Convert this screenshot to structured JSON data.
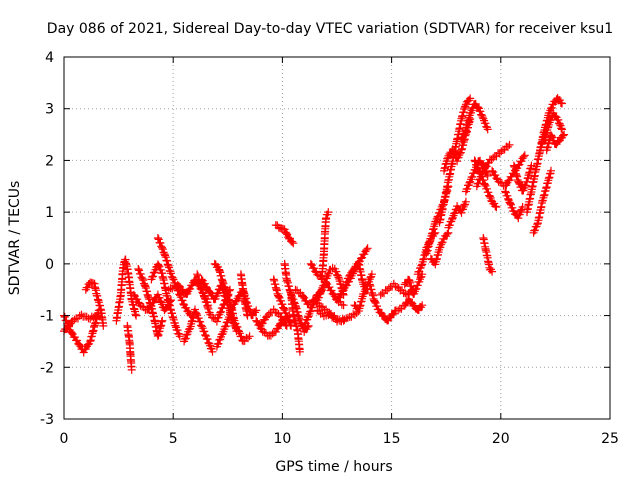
{
  "chart_data": {
    "type": "scatter",
    "title": "Day 086 of 2021, Sidereal Day-to-day VTEC variation (SDTVAR) for receiver ksu1",
    "xlabel": "GPS time / hours",
    "ylabel": "SDTVAR / TECUs",
    "xlim": [
      0,
      25
    ],
    "ylim": [
      -3,
      4
    ],
    "xticks": [
      "0",
      "5",
      "10",
      "15",
      "20",
      "25"
    ],
    "yticks": [
      "-3",
      "-2",
      "-1",
      "0",
      "1",
      "2",
      "3",
      "4"
    ],
    "grid": true,
    "marker": "+",
    "series_color": "#ff0000",
    "tracks": [
      [
        [
          0.0,
          -1.0
        ],
        [
          0.3,
          -1.3
        ],
        [
          0.6,
          -1.5
        ],
        [
          0.9,
          -1.7
        ],
        [
          1.2,
          -1.5
        ],
        [
          1.4,
          -1.2
        ],
        [
          1.6,
          -0.9
        ]
      ],
      [
        [
          0.0,
          -1.3
        ],
        [
          0.4,
          -1.1
        ],
        [
          0.8,
          -1.0
        ],
        [
          1.2,
          -1.05
        ],
        [
          1.5,
          -1.0
        ]
      ],
      [
        [
          1.0,
          -0.5
        ],
        [
          1.2,
          -0.35
        ],
        [
          1.4,
          -0.4
        ],
        [
          1.5,
          -0.6
        ],
        [
          1.7,
          -0.9
        ],
        [
          1.8,
          -1.2
        ]
      ],
      [
        [
          2.4,
          -1.1
        ],
        [
          2.6,
          -0.6
        ],
        [
          2.7,
          -0.1
        ],
        [
          2.8,
          0.1
        ],
        [
          2.95,
          -0.2
        ],
        [
          3.1,
          -0.7
        ],
        [
          3.3,
          -1.0
        ]
      ],
      [
        [
          2.9,
          -1.2
        ],
        [
          3.0,
          -1.5
        ],
        [
          3.05,
          -1.8
        ],
        [
          3.1,
          -2.05
        ]
      ],
      [
        [
          3.2,
          -0.6
        ],
        [
          3.5,
          -0.8
        ],
        [
          3.8,
          -0.9
        ],
        [
          4.0,
          -0.8
        ],
        [
          4.3,
          -0.6
        ],
        [
          4.6,
          -0.9
        ],
        [
          4.9,
          -0.7
        ]
      ],
      [
        [
          3.4,
          -0.1
        ],
        [
          3.7,
          -0.4
        ],
        [
          3.9,
          -0.7
        ],
        [
          4.1,
          -1.0
        ],
        [
          4.3,
          -1.4
        ],
        [
          4.5,
          -1.1
        ]
      ],
      [
        [
          4.0,
          -0.3
        ],
        [
          4.3,
          0.0
        ],
        [
          4.5,
          -0.2
        ],
        [
          4.7,
          -0.6
        ],
        [
          4.9,
          -0.9
        ],
        [
          5.1,
          -1.2
        ],
        [
          5.3,
          -1.4
        ]
      ],
      [
        [
          4.8,
          -0.5
        ],
        [
          5.2,
          -0.4
        ],
        [
          5.6,
          -0.6
        ],
        [
          6.0,
          -0.3
        ],
        [
          6.3,
          -0.5
        ],
        [
          6.6,
          -0.8
        ]
      ],
      [
        [
          4.3,
          0.5
        ],
        [
          4.6,
          0.2
        ],
        [
          4.9,
          -0.2
        ],
        [
          5.2,
          -0.5
        ],
        [
          5.5,
          -0.8
        ],
        [
          5.8,
          -1.0
        ]
      ],
      [
        [
          5.5,
          -1.5
        ],
        [
          5.8,
          -1.2
        ],
        [
          6.0,
          -0.9
        ],
        [
          6.2,
          -1.1
        ],
        [
          6.5,
          -1.4
        ],
        [
          6.8,
          -1.7
        ]
      ],
      [
        [
          6.1,
          -0.2
        ],
        [
          6.4,
          -0.6
        ],
        [
          6.7,
          -1.0
        ],
        [
          7.0,
          -1.1
        ],
        [
          7.3,
          -0.8
        ],
        [
          7.6,
          -0.5
        ]
      ],
      [
        [
          6.3,
          -0.3
        ],
        [
          6.6,
          -0.5
        ],
        [
          6.9,
          -0.7
        ],
        [
          7.2,
          -0.4
        ],
        [
          7.5,
          -0.8
        ],
        [
          7.8,
          -1.2
        ]
      ],
      [
        [
          7.0,
          -1.6
        ],
        [
          7.3,
          -1.3
        ],
        [
          7.6,
          -1.0
        ],
        [
          7.9,
          -1.2
        ],
        [
          8.2,
          -1.5
        ],
        [
          8.5,
          -1.4
        ]
      ],
      [
        [
          6.9,
          0.0
        ],
        [
          7.1,
          -0.1
        ],
        [
          7.3,
          -0.4
        ],
        [
          7.5,
          -0.6
        ],
        [
          7.7,
          -0.9
        ],
        [
          7.9,
          -1.3
        ]
      ],
      [
        [
          7.6,
          -0.9
        ],
        [
          7.9,
          -0.7
        ],
        [
          8.2,
          -0.5
        ],
        [
          8.4,
          -0.8
        ],
        [
          8.6,
          -1.0
        ],
        [
          8.8,
          -0.9
        ]
      ],
      [
        [
          8.1,
          -0.2
        ],
        [
          8.2,
          -0.5
        ],
        [
          8.3,
          -0.8
        ],
        [
          8.4,
          -1.0
        ]
      ],
      [
        [
          8.8,
          -1.1
        ],
        [
          9.1,
          -1.3
        ],
        [
          9.4,
          -1.4
        ],
        [
          9.7,
          -1.3
        ],
        [
          10.0,
          -1.1
        ],
        [
          10.3,
          -1.0
        ]
      ],
      [
        [
          9.0,
          -1.2
        ],
        [
          9.3,
          -1.0
        ],
        [
          9.6,
          -0.9
        ],
        [
          9.9,
          -1.0
        ],
        [
          10.2,
          -1.2
        ]
      ],
      [
        [
          9.6,
          -0.3
        ],
        [
          9.8,
          -0.6
        ],
        [
          10.0,
          -0.8
        ],
        [
          10.2,
          -1.0
        ],
        [
          10.4,
          -1.2
        ]
      ],
      [
        [
          9.7,
          0.75
        ],
        [
          9.9,
          0.7
        ],
        [
          10.1,
          0.65
        ],
        [
          10.3,
          0.5
        ],
        [
          10.5,
          0.4
        ]
      ],
      [
        [
          10.1,
          0.0
        ],
        [
          10.2,
          -0.3
        ],
        [
          10.4,
          -0.6
        ],
        [
          10.5,
          -1.0
        ],
        [
          10.7,
          -1.3
        ],
        [
          10.8,
          -1.7
        ]
      ],
      [
        [
          10.4,
          -0.6
        ],
        [
          10.6,
          -0.8
        ],
        [
          10.8,
          -1.1
        ],
        [
          11.0,
          -1.3
        ],
        [
          11.2,
          -1.2
        ]
      ],
      [
        [
          10.6,
          -0.5
        ],
        [
          10.9,
          -0.6
        ],
        [
          11.2,
          -0.8
        ],
        [
          11.5,
          -0.7
        ],
        [
          11.8,
          -0.5
        ]
      ],
      [
        [
          11.0,
          -1.2
        ],
        [
          11.2,
          -1.0
        ],
        [
          11.4,
          -0.8
        ],
        [
          11.6,
          -0.6
        ]
      ],
      [
        [
          11.4,
          -0.7
        ],
        [
          11.7,
          -0.8
        ],
        [
          12.0,
          -0.9
        ],
        [
          12.3,
          -1.0
        ],
        [
          12.6,
          -1.1
        ],
        [
          13.0,
          -1.05
        ],
        [
          13.4,
          -0.95
        ]
      ],
      [
        [
          11.6,
          -0.9
        ],
        [
          11.9,
          -1.0
        ],
        [
          12.2,
          -1.0
        ],
        [
          12.5,
          -1.1
        ],
        [
          12.8,
          -1.1
        ]
      ],
      [
        [
          11.8,
          -0.3
        ],
        [
          11.9,
          0.2
        ],
        [
          11.95,
          0.6
        ],
        [
          12.0,
          0.9
        ],
        [
          12.1,
          1.0
        ]
      ],
      [
        [
          11.6,
          -0.7
        ],
        [
          11.8,
          -0.5
        ],
        [
          12.0,
          -0.3
        ],
        [
          12.2,
          -0.1
        ],
        [
          12.4,
          -0.1
        ],
        [
          12.6,
          -0.3
        ],
        [
          12.8,
          -0.6
        ]
      ],
      [
        [
          11.3,
          0.0
        ],
        [
          11.6,
          -0.2
        ],
        [
          11.9,
          -0.3
        ],
        [
          12.2,
          -0.5
        ],
        [
          12.5,
          -0.7
        ],
        [
          12.8,
          -0.8
        ]
      ],
      [
        [
          12.5,
          -0.7
        ],
        [
          12.8,
          -0.5
        ],
        [
          13.1,
          -0.3
        ],
        [
          13.3,
          -0.1
        ],
        [
          13.6,
          0.1
        ],
        [
          13.9,
          0.3
        ]
      ],
      [
        [
          12.9,
          -0.4
        ],
        [
          13.1,
          -0.2
        ],
        [
          13.3,
          -0.1
        ],
        [
          13.5,
          0.0
        ],
        [
          13.7,
          -0.4
        ],
        [
          13.9,
          -0.5
        ]
      ],
      [
        [
          13.3,
          -0.8
        ],
        [
          13.5,
          -0.9
        ],
        [
          13.7,
          -0.6
        ],
        [
          13.9,
          -0.4
        ],
        [
          14.1,
          -0.2
        ]
      ],
      [
        [
          14.0,
          -0.4
        ],
        [
          14.2,
          -0.7
        ],
        [
          14.4,
          -0.9
        ],
        [
          14.6,
          -1.0
        ],
        [
          14.8,
          -1.1
        ],
        [
          15.0,
          -1.0
        ],
        [
          15.2,
          -0.9
        ]
      ],
      [
        [
          14.5,
          -0.6
        ],
        [
          14.8,
          -0.5
        ],
        [
          15.1,
          -0.4
        ],
        [
          15.4,
          -0.5
        ],
        [
          15.7,
          -0.6
        ],
        [
          16.0,
          -0.5
        ]
      ],
      [
        [
          15.3,
          -0.9
        ],
        [
          15.6,
          -0.8
        ],
        [
          15.8,
          -0.7
        ],
        [
          16.0,
          -0.8
        ],
        [
          16.2,
          -0.9
        ],
        [
          16.4,
          -0.8
        ]
      ],
      [
        [
          15.6,
          -0.4
        ],
        [
          15.8,
          -0.3
        ],
        [
          16.0,
          -0.6
        ],
        [
          16.2,
          -0.4
        ],
        [
          16.4,
          -0.2
        ]
      ],
      [
        [
          16.2,
          -0.2
        ],
        [
          16.4,
          0.0
        ],
        [
          16.6,
          0.3
        ],
        [
          16.8,
          0.5
        ],
        [
          17.0,
          0.6
        ]
      ],
      [
        [
          16.6,
          0.2
        ],
        [
          16.8,
          0.5
        ],
        [
          17.0,
          0.8
        ],
        [
          17.2,
          1.0
        ],
        [
          17.4,
          1.2
        ],
        [
          17.6,
          1.5
        ]
      ],
      [
        [
          16.8,
          0.1
        ],
        [
          17.0,
          0.0
        ],
        [
          17.2,
          0.3
        ],
        [
          17.4,
          0.5
        ],
        [
          17.6,
          0.6
        ]
      ],
      [
        [
          17.2,
          0.8
        ],
        [
          17.4,
          1.2
        ],
        [
          17.6,
          1.6
        ],
        [
          17.8,
          2.0
        ],
        [
          18.0,
          2.4
        ],
        [
          18.2,
          2.8
        ],
        [
          18.4,
          3.1
        ],
        [
          18.6,
          3.2
        ]
      ],
      [
        [
          17.4,
          1.8
        ],
        [
          17.6,
          2.1
        ],
        [
          17.8,
          2.2
        ],
        [
          18.0,
          2.0
        ],
        [
          18.2,
          2.2
        ],
        [
          18.4,
          2.5
        ],
        [
          18.6,
          2.8
        ]
      ],
      [
        [
          17.6,
          0.7
        ],
        [
          17.8,
          0.9
        ],
        [
          18.0,
          1.1
        ],
        [
          18.2,
          1.0
        ],
        [
          18.4,
          1.2
        ]
      ],
      [
        [
          18.2,
          2.4
        ],
        [
          18.4,
          2.6
        ],
        [
          18.6,
          2.9
        ],
        [
          18.8,
          3.1
        ],
        [
          19.0,
          3.0
        ],
        [
          19.2,
          2.8
        ],
        [
          19.4,
          2.6
        ]
      ],
      [
        [
          18.4,
          1.4
        ],
        [
          18.6,
          1.6
        ],
        [
          18.8,
          1.8
        ],
        [
          19.0,
          2.0
        ],
        [
          19.2,
          1.9
        ],
        [
          19.4,
          1.7
        ]
      ],
      [
        [
          18.9,
          1.5
        ],
        [
          19.2,
          1.8
        ],
        [
          19.5,
          2.0
        ],
        [
          19.8,
          2.1
        ],
        [
          20.1,
          2.2
        ],
        [
          20.4,
          2.3
        ]
      ],
      [
        [
          18.8,
          2.0
        ],
        [
          19.0,
          1.8
        ],
        [
          19.2,
          1.6
        ],
        [
          19.4,
          1.4
        ],
        [
          19.6,
          1.2
        ],
        [
          19.8,
          1.1
        ]
      ],
      [
        [
          19.2,
          0.5
        ],
        [
          19.3,
          0.3
        ],
        [
          19.4,
          0.1
        ],
        [
          19.5,
          -0.1
        ],
        [
          19.6,
          -0.15
        ]
      ],
      [
        [
          19.6,
          1.8
        ],
        [
          19.9,
          1.6
        ],
        [
          20.2,
          1.5
        ],
        [
          20.5,
          1.7
        ],
        [
          20.8,
          1.9
        ],
        [
          21.1,
          2.1
        ]
      ],
      [
        [
          20.2,
          1.4
        ],
        [
          20.4,
          1.2
        ],
        [
          20.6,
          1.0
        ],
        [
          20.8,
          0.9
        ],
        [
          21.0,
          1.1
        ]
      ],
      [
        [
          20.6,
          1.9
        ],
        [
          20.8,
          1.6
        ],
        [
          21.0,
          1.4
        ],
        [
          21.2,
          1.6
        ],
        [
          21.4,
          1.9
        ]
      ],
      [
        [
          21.2,
          1.0
        ],
        [
          21.4,
          1.4
        ],
        [
          21.6,
          1.8
        ],
        [
          21.8,
          2.2
        ],
        [
          22.0,
          2.5
        ]
      ],
      [
        [
          21.5,
          0.6
        ],
        [
          21.7,
          0.8
        ],
        [
          21.9,
          1.2
        ],
        [
          22.1,
          1.5
        ],
        [
          22.3,
          1.8
        ]
      ],
      [
        [
          21.8,
          2.2
        ],
        [
          22.0,
          2.6
        ],
        [
          22.2,
          2.9
        ],
        [
          22.4,
          3.1
        ],
        [
          22.6,
          3.2
        ],
        [
          22.8,
          3.1
        ]
      ],
      [
        [
          22.0,
          2.4
        ],
        [
          22.2,
          2.7
        ],
        [
          22.4,
          2.9
        ],
        [
          22.6,
          2.8
        ],
        [
          22.8,
          2.6
        ]
      ],
      [
        [
          22.1,
          2.2
        ],
        [
          22.3,
          2.5
        ],
        [
          22.5,
          2.3
        ],
        [
          22.7,
          2.4
        ],
        [
          22.9,
          2.5
        ]
      ]
    ]
  }
}
